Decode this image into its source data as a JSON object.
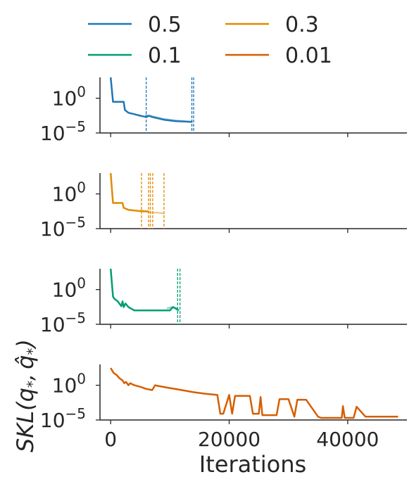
{
  "chart_data": {
    "type": "line",
    "xlabel": "Iterations",
    "ylabel": "SKL(q*, q̂*)",
    "ylabel_parts": {
      "main": "SKL(",
      "q1": "q",
      "sub1": "*",
      "comma": ",",
      "q2": "q̂",
      "sub2": "*",
      "close": ")"
    },
    "xlim": [
      -1800,
      50000
    ],
    "ylim": [
      1e-05,
      1000
    ],
    "yscale": "log",
    "x_ticks": [
      0,
      20000,
      40000
    ],
    "x_tick_labels": [
      "0",
      "20000",
      "40000"
    ],
    "y_tick_labels": [
      {
        "base": "10",
        "exp": "0",
        "value": 1
      },
      {
        "base": "10",
        "exp": "−5",
        "value": 1e-05
      }
    ],
    "grid": false,
    "legend": {
      "placement": "top",
      "columns": 2
    },
    "panels": [
      {
        "name": "0.5",
        "color": "#1f77b4",
        "series": [
          {
            "x": [
              0,
              400,
              500,
              2200,
              2400,
              3000,
              4000,
              5000,
              6000,
              6500,
              7000,
              9000,
              11000,
              13800
            ],
            "y": [
              1000,
              0.3,
              0.3,
              0.3,
              0.02,
              0.008,
              0.005,
              0.003,
              0.002,
              0.003,
              0.002,
              0.0008,
              0.0005,
              0.0004
            ],
            "alpha": 1.0
          },
          {
            "x": [
              5800,
              6500,
              7500,
              9000,
              11000,
              13500
            ],
            "y": [
              0.004,
              0.003,
              0.002,
              0.001,
              0.0006,
              0.0004
            ],
            "alpha": 0.45
          }
        ],
        "vlines": [
          6000,
          13700,
          14000
        ]
      },
      {
        "name": "0.3",
        "color": "#e08c00",
        "series": [
          {
            "x": [
              0,
              300,
              400,
              2000,
              2200,
              3000,
              4000,
              5500,
              6500
            ],
            "y": [
              1000,
              0.5,
              0.05,
              0.05,
              0.01,
              0.005,
              0.004,
              0.003,
              0.003
            ],
            "alpha": 1.0
          },
          {
            "x": [
              5000,
              6000,
              7000,
              8000,
              9000
            ],
            "y": [
              0.005,
              0.003,
              0.002,
              0.002,
              0.0015
            ],
            "alpha": 0.45
          }
        ],
        "vlines": [
          5200,
          6400,
          6700,
          7100,
          9000
        ]
      },
      {
        "name": "0.1",
        "color": "#009e73",
        "series": [
          {
            "x": [
              0,
              400,
              600,
              1200,
              1800,
              2000,
              2200,
              2500,
              3000,
              4000,
              5000,
              7000,
              9000,
              10000,
              10500,
              11000,
              11500
            ],
            "y": [
              1000,
              0.1,
              0.05,
              0.02,
              0.004,
              0.02,
              0.003,
              0.01,
              0.003,
              0.001,
              0.001,
              0.001,
              0.001,
              0.001,
              0.003,
              0.002,
              0.001
            ],
            "alpha": 1.0
          },
          {
            "x": [
              9500,
              10500,
              11500
            ],
            "y": [
              0.002,
              0.003,
              0.001
            ],
            "alpha": 0.45
          }
        ],
        "vlines": [
          11300,
          11700
        ]
      },
      {
        "name": "0.01",
        "color": "#d55e00",
        "series": [
          {
            "x": [
              0,
              500,
              1000,
              1500,
              2000,
              2300,
              2600,
              3000,
              3300,
              4000,
              5000,
              6000,
              7000,
              7500,
              8000,
              10000,
              12000,
              14000,
              16000,
              18000,
              18500,
              19000,
              20000,
              20500,
              21000,
              23500,
              24000,
              25000,
              25300,
              25600,
              27000,
              28000,
              28500,
              30000,
              31000,
              31500,
              33000,
              35000,
              35500,
              36000,
              37000,
              39000,
              39200,
              39500,
              41000,
              41500,
              43000,
              45000,
              48500
            ],
            "y": [
              300,
              60,
              30,
              10,
              5,
              2,
              3,
              1,
              2,
              1,
              0.6,
              0.3,
              0.2,
              1,
              0.8,
              0.4,
              0.2,
              0.1,
              0.06,
              0.04,
              8e-05,
              8e-05,
              0.04,
              8e-05,
              0.03,
              0.03,
              8e-05,
              8e-05,
              0.02,
              5e-05,
              5e-05,
              5e-05,
              0.01,
              0.01,
              3e-05,
              0.008,
              0.008,
              3e-05,
              2e-05,
              2e-05,
              2e-05,
              2e-05,
              0.001,
              2e-05,
              2e-05,
              0.0008,
              3e-05,
              3e-05,
              3e-05
            ],
            "alpha": 1.0
          }
        ],
        "vlines": []
      }
    ]
  }
}
